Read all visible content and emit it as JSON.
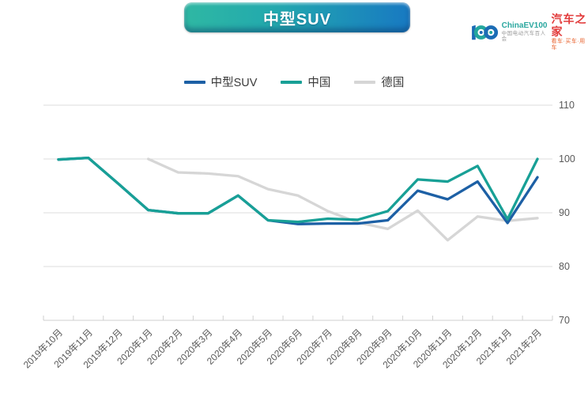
{
  "banner": {
    "title": "中型SUV"
  },
  "logo": {
    "chinaev_label": "ChinaEV100",
    "chinaev_sub": "中国电动汽车百人会",
    "autohome_label": "汽车之家",
    "autohome_sub": "看车·买车·用车"
  },
  "colors": {
    "banner_teal": "#2fb8a3",
    "banner_blue": "#1879c2",
    "series_blue": "#1d60a5",
    "series_teal": "#18a096",
    "series_gray": "#d6d6d6",
    "axis_text": "#595959"
  },
  "chart_data": {
    "type": "line",
    "categories": [
      "2019年10月",
      "2019年11月",
      "2019年12月",
      "2020年1月",
      "2020年2月",
      "2020年3月",
      "2020年4月",
      "2020年5月",
      "2020年6月",
      "2020年7月",
      "2020年8月",
      "2020年9月",
      "2020年10月",
      "2020年11月",
      "2020年12月",
      "2021年1月",
      "2021年2月"
    ],
    "series": [
      {
        "name": "中型SUV",
        "color": "#1d60a5",
        "z": 1,
        "values": [
          99.9,
          100.2,
          95.4,
          90.5,
          89.9,
          89.9,
          93.2,
          88.6,
          87.9,
          88.0,
          88.0,
          88.6,
          94.1,
          92.5,
          95.8,
          88.1,
          96.6
        ]
      },
      {
        "name": "中国",
        "color": "#18a096",
        "z": 2,
        "values": [
          99.9,
          100.2,
          95.4,
          90.5,
          89.9,
          89.9,
          93.2,
          88.6,
          88.3,
          88.9,
          88.7,
          90.3,
          96.2,
          95.8,
          98.7,
          88.8,
          100.0
        ]
      },
      {
        "name": "德国",
        "color": "#d6d6d6",
        "z": 0,
        "values": [
          null,
          null,
          null,
          100.0,
          97.5,
          97.3,
          96.8,
          94.4,
          93.2,
          90.3,
          88.2,
          87.0,
          90.4,
          84.9,
          89.3,
          88.5,
          89.0
        ]
      }
    ],
    "ylim": [
      70,
      110
    ],
    "yticks": [
      70,
      80,
      90,
      100,
      110
    ],
    "xlabel": "",
    "ylabel": "",
    "title": "中型SUV",
    "legend_position": "top",
    "y_axis_side": "right",
    "grid": true
  }
}
